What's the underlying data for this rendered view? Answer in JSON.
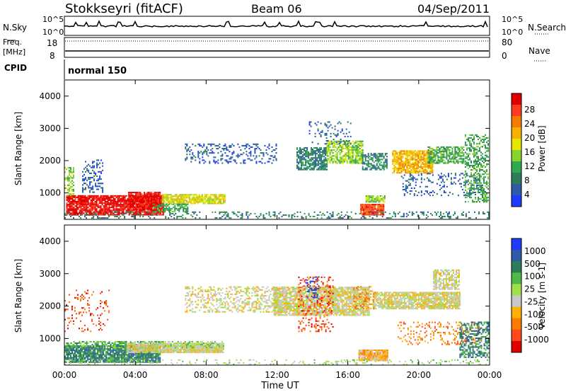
{
  "header": {
    "site": "Stokkseyri (fitACF)",
    "beam": "Beam 06",
    "date": "04/Sep/2011"
  },
  "panels": {
    "nsky_label": "N.Sky",
    "nsky_ticks": [
      "10^5",
      "10^0"
    ],
    "nsky_right_ticks": [
      "10^5",
      "10^0"
    ],
    "nsearch_label": "N.Search",
    "freq_label_1": "Freq.",
    "freq_label_2": "[MHz]",
    "freq_ticks": [
      "18",
      "8"
    ],
    "nave_ticks": [
      "80",
      "0"
    ],
    "nave_label": "Nave",
    "cpid_label": "CPID",
    "cpid_value": "normal 150"
  },
  "chart_data": [
    {
      "type": "heatmap",
      "name": "power",
      "ylabel": "Slant Range [km]",
      "xlabel": "Time UT",
      "ylim": [
        180,
        4500
      ],
      "yticks": [
        1000,
        2000,
        3000,
        4000
      ],
      "xticks": [
        "00:00",
        "04:00",
        "08:00",
        "12:00",
        "16:00",
        "20:00",
        "00:00"
      ],
      "colorbar": {
        "label": "Power [dB]",
        "ticks": [
          "28",
          "24",
          "20",
          "16",
          "12",
          "8",
          "4"
        ],
        "colors": [
          "#e00000",
          "#ff3b1f",
          "#f47a00",
          "#f5b000",
          "#e6e600",
          "#8ad32a",
          "#2fa84f",
          "#2e7d5a",
          "#2f5aa8",
          "#1e3cff"
        ]
      },
      "regions": [
        {
          "t0": 0.1,
          "t1": 5.6,
          "r0": 300,
          "r1": 900,
          "level": 0,
          "density": 0.85
        },
        {
          "t0": 0.0,
          "t1": 0.5,
          "r0": 900,
          "r1": 1800,
          "level": 5,
          "density": 0.5
        },
        {
          "t0": 1.0,
          "t1": 2.2,
          "r0": 1000,
          "r1": 2000,
          "level": 8,
          "density": 0.35
        },
        {
          "t0": 3.6,
          "t1": 5.4,
          "r0": 450,
          "r1": 1000,
          "level": 0,
          "density": 0.9
        },
        {
          "t0": 5.5,
          "t1": 9.1,
          "r0": 650,
          "r1": 950,
          "level": 4,
          "density": 0.85
        },
        {
          "t0": 5.0,
          "t1": 7.0,
          "r0": 400,
          "r1": 650,
          "level": 6,
          "density": 0.6
        },
        {
          "t0": 6.8,
          "t1": 12.0,
          "r0": 1900,
          "r1": 2500,
          "level": 8,
          "density": 0.25
        },
        {
          "t0": 13.1,
          "t1": 14.8,
          "r0": 1700,
          "r1": 2400,
          "level": 7,
          "density": 0.7
        },
        {
          "t0": 14.8,
          "t1": 16.8,
          "r0": 1900,
          "r1": 2600,
          "level": 5,
          "density": 0.75
        },
        {
          "t0": 13.8,
          "t1": 16.2,
          "r0": 2500,
          "r1": 3200,
          "level": 8,
          "density": 0.15
        },
        {
          "t0": 16.8,
          "t1": 18.2,
          "r0": 1700,
          "r1": 2200,
          "level": 7,
          "density": 0.6
        },
        {
          "t0": 16.7,
          "t1": 18.0,
          "r0": 300,
          "r1": 650,
          "level": 1,
          "density": 0.95
        },
        {
          "t0": 17.0,
          "t1": 18.1,
          "r0": 700,
          "r1": 900,
          "level": 5,
          "density": 0.8
        },
        {
          "t0": 18.5,
          "t1": 20.8,
          "r0": 1600,
          "r1": 2300,
          "level": 3,
          "density": 0.85
        },
        {
          "t0": 20.5,
          "t1": 22.5,
          "r0": 1900,
          "r1": 2400,
          "level": 6,
          "density": 0.7
        },
        {
          "t0": 19.0,
          "t1": 23.6,
          "r0": 900,
          "r1": 1600,
          "level": 8,
          "density": 0.2
        },
        {
          "t0": 22.6,
          "t1": 24.0,
          "r0": 700,
          "r1": 2800,
          "level": 6,
          "density": 0.45
        },
        {
          "t0": 0.0,
          "t1": 24.0,
          "r0": 200,
          "r1": 400,
          "level": 7,
          "density": 0.25
        }
      ]
    },
    {
      "type": "heatmap",
      "name": "velocity",
      "ylabel": "Slant Range [km]",
      "xlabel": "Time UT",
      "ylim": [
        180,
        4500
      ],
      "yticks": [
        1000,
        2000,
        3000,
        4000
      ],
      "xticks": [
        "00:00",
        "04:00",
        "08:00",
        "12:00",
        "16:00",
        "20:00",
        "00:00"
      ],
      "colorbar": {
        "label": "Velocity [m s-1]",
        "ticks": [
          "1000",
          "500",
          "100",
          "25",
          "-25",
          "-100",
          "-500",
          "-1000"
        ],
        "colors": [
          "#1e3cff",
          "#2f5aa8",
          "#2e7d5a",
          "#4fb848",
          "#9ee04a",
          "#c8c8c8",
          "#ffb000",
          "#ff7a00",
          "#ff4a1a",
          "#e00000"
        ]
      },
      "regions": [
        {
          "t0": 0.0,
          "t1": 5.4,
          "r0": 250,
          "r1": 750,
          "level": 2,
          "density": 0.9
        },
        {
          "t0": 0.1,
          "t1": 5.6,
          "r0": 700,
          "r1": 900,
          "level": 3,
          "density": 0.6
        },
        {
          "t0": 3.5,
          "t1": 9.0,
          "r0": 550,
          "r1": 850,
          "level": 5,
          "density": 0.95
        },
        {
          "t0": 5.5,
          "t1": 9.0,
          "r0": 700,
          "r1": 900,
          "level": 4,
          "density": 0.5
        },
        {
          "t0": 0.0,
          "t1": 2.5,
          "r0": 1200,
          "r1": 2500,
          "level": 8,
          "density": 0.12
        },
        {
          "t0": 6.8,
          "t1": 12.5,
          "r0": 1800,
          "r1": 2600,
          "level": 5,
          "density": 0.4
        },
        {
          "t0": 11.8,
          "t1": 17.2,
          "r0": 1700,
          "r1": 2600,
          "level": 5,
          "density": 0.85
        },
        {
          "t0": 13.2,
          "t1": 15.2,
          "r0": 1200,
          "r1": 2900,
          "level": 8,
          "density": 0.25
        },
        {
          "t0": 13.6,
          "t1": 14.4,
          "r0": 2200,
          "r1": 2900,
          "level": 0,
          "density": 0.3
        },
        {
          "t0": 16.6,
          "t1": 18.2,
          "r0": 300,
          "r1": 650,
          "level": 6,
          "density": 0.95
        },
        {
          "t0": 17.4,
          "t1": 22.3,
          "r0": 1900,
          "r1": 2400,
          "level": 5,
          "density": 0.85
        },
        {
          "t0": 20.8,
          "t1": 22.3,
          "r0": 2500,
          "r1": 3100,
          "level": 5,
          "density": 0.7
        },
        {
          "t0": 18.8,
          "t1": 23.5,
          "r0": 800,
          "r1": 1500,
          "level": 7,
          "density": 0.2
        },
        {
          "t0": 22.3,
          "t1": 24.0,
          "r0": 400,
          "r1": 1500,
          "level": 2,
          "density": 0.5
        },
        {
          "t0": 16.3,
          "t1": 17.5,
          "r0": 1900,
          "r1": 2600,
          "level": 7,
          "density": 0.3
        },
        {
          "t0": 0.0,
          "t1": 24.0,
          "r0": 180,
          "r1": 350,
          "level": 4,
          "density": 0.2
        }
      ]
    }
  ]
}
